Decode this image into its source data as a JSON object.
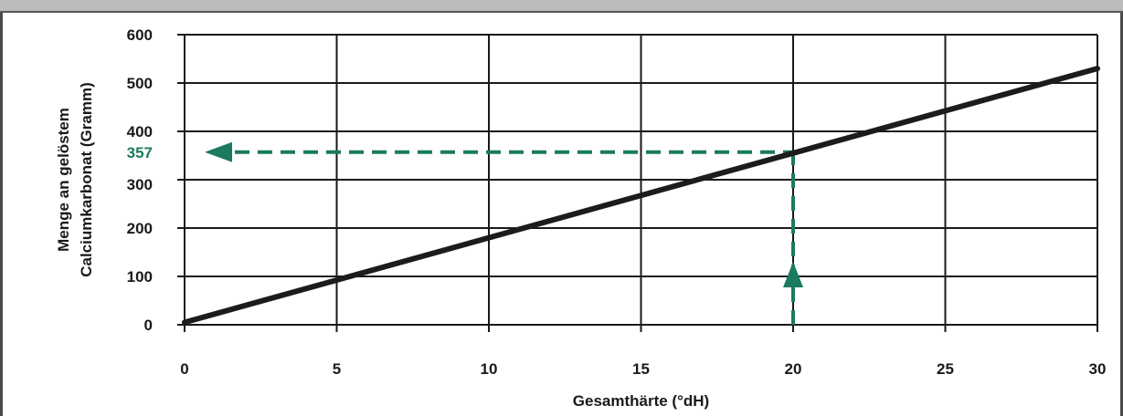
{
  "chart_data": {
    "type": "line",
    "title": "",
    "xlabel": "Gesamthärte (°dH)",
    "ylabel_lines": [
      "Menge an gelöstem",
      "Calciumkarbonat (Gramm)"
    ],
    "xlim": [
      0,
      30
    ],
    "ylim": [
      0,
      600
    ],
    "x_ticks": [
      0,
      5,
      10,
      15,
      20,
      25,
      30
    ],
    "y_ticks": [
      0,
      100,
      200,
      300,
      400,
      500,
      600
    ],
    "grid": true,
    "series": [
      {
        "x": [
          0,
          30
        ],
        "y": [
          5,
          530
        ]
      }
    ],
    "annotation": {
      "x": 20,
      "y": 357,
      "label": "357",
      "color": "#1b7a5f"
    },
    "line_color": "#1c1c1c",
    "grid_color": "#1a1a1a"
  }
}
